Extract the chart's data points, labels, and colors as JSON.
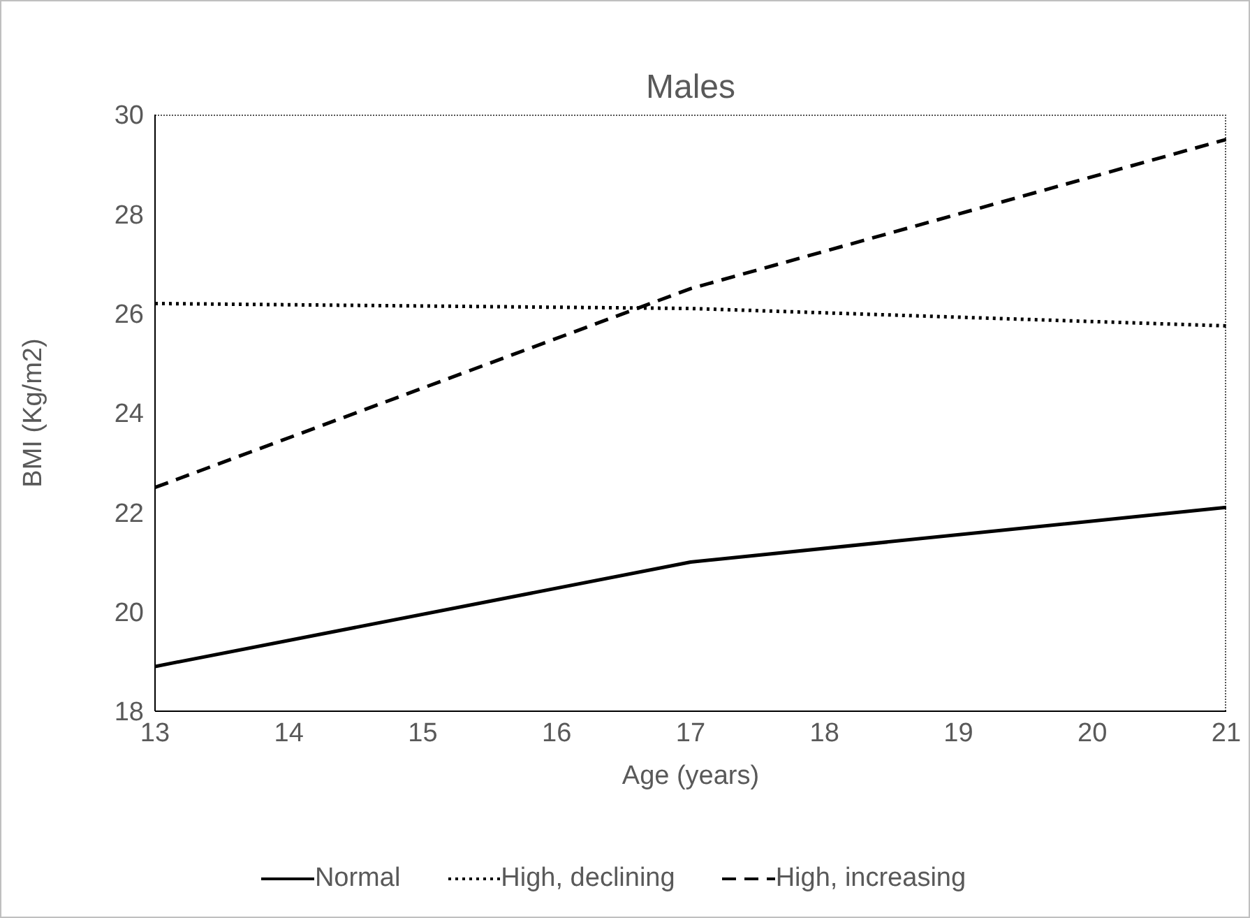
{
  "chart_data": {
    "type": "line",
    "title": "Males",
    "xlabel": "Age (years)",
    "ylabel": "BMI (Kg/m2)",
    "x": [
      13,
      17,
      21
    ],
    "series": [
      {
        "name": "Normal",
        "color": "#000000",
        "line_style": "solid",
        "values": [
          18.9,
          21.0,
          22.1
        ]
      },
      {
        "name": "High, declining",
        "color": "#000000",
        "line_style": "dotted",
        "values": [
          26.2,
          26.1,
          25.75
        ]
      },
      {
        "name": "High, increasing",
        "color": "#000000",
        "line_style": "dashed",
        "values": [
          22.5,
          26.5,
          29.5
        ]
      }
    ],
    "xlim": [
      13,
      21
    ],
    "xticks": [
      13,
      14,
      15,
      16,
      17,
      18,
      19,
      20,
      21
    ],
    "ylim": [
      18,
      30
    ],
    "yticks": [
      18,
      20,
      22,
      24,
      26,
      28,
      30
    ],
    "grid": false,
    "legend": "bottom",
    "marker": "none"
  }
}
